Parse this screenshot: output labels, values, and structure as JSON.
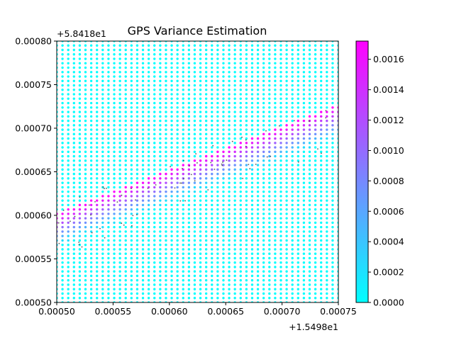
{
  "chart_data": {
    "type": "scatter",
    "title": "GPS Variance Estimation",
    "x_offset_label": "+1.5498e1",
    "y_offset_label": "+5.8418e1",
    "xlim": [
      0.0005,
      0.00075
    ],
    "ylim": [
      0.0005,
      0.0008
    ],
    "x_ticks": [
      "0.00050",
      "0.00055",
      "0.00060",
      "0.00065",
      "0.00070",
      "0.00075"
    ],
    "y_ticks": [
      "0.00050",
      "0.00055",
      "0.00060",
      "0.00065",
      "0.00070",
      "0.00075",
      "0.00080"
    ],
    "grid": false,
    "colormap": "cool",
    "colorbar": {
      "min": 0.0,
      "max": 0.00172,
      "ticks": [
        "0.0000",
        "0.0002",
        "0.0004",
        "0.0006",
        "0.0008",
        "0.0010",
        "0.0012",
        "0.0014",
        "0.0016"
      ],
      "tick_values": [
        0.0,
        0.0002,
        0.0004,
        0.0006,
        0.0008,
        0.001,
        0.0012,
        0.0014,
        0.0016
      ]
    },
    "grid_points": {
      "x_start": 0.0005,
      "x_end": 0.00075,
      "n_cols": 50,
      "y_start": 0.0005,
      "y_end": 0.0008,
      "n_rows": 60
    },
    "track": {
      "start": [
        0.0005,
        0.0006
      ],
      "end": [
        0.00075,
        0.000725
      ],
      "peak_value": 0.00172,
      "below_spread": 3e-05
    },
    "colors": {
      "low": "#00ffff",
      "high": "#ff00ff",
      "raw_points": "#333333"
    }
  }
}
